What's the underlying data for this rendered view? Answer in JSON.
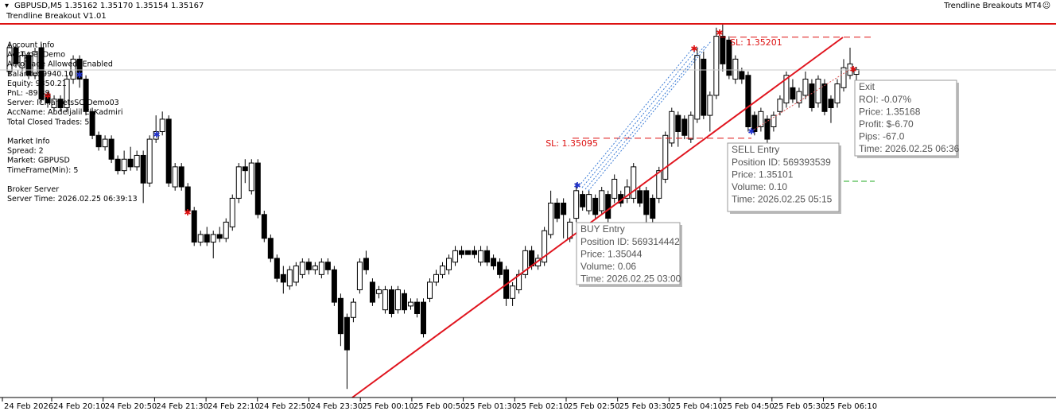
{
  "chart_data": {
    "type": "candlestick",
    "title": "GBPUSD,M5  1.35162 1.35170 1.35154 1.35167",
    "subtitle": "Trendline Breakout V1.01",
    "indicator_name": "Trendline Breakouts MT4",
    "ylim": [
      1.34823,
      1.35215
    ],
    "x_labels": [
      "24 Feb 2026",
      "24 Feb 20:10",
      "24 Feb 20:50",
      "24 Feb 21:30",
      "24 Feb 22:10",
      "24 Feb 22:50",
      "24 Feb 23:30",
      "25 Feb 00:10",
      "25 Feb 00:50",
      "25 Feb 01:30",
      "25 Feb 02:10",
      "25 Feb 02:50",
      "25 Feb 03:30",
      "25 Feb 04:10",
      "25 Feb 04:50",
      "25 Feb 05:30",
      "25 Feb 06:10"
    ],
    "candles": [
      [
        1.35165,
        1.35194,
        1.35161,
        1.3519
      ],
      [
        1.3519,
        1.35194,
        1.35169,
        1.35173
      ],
      [
        1.35169,
        1.35186,
        1.35165,
        1.35182
      ],
      [
        1.35182,
        1.35186,
        1.35157,
        1.35161
      ],
      [
        1.35161,
        1.3519,
        1.35157,
        1.35186
      ],
      [
        1.3519,
        1.35194,
        1.35132,
        1.35136
      ],
      [
        1.3514,
        1.35144,
        1.35127,
        1.35132
      ],
      [
        1.35127,
        1.3514,
        1.35123,
        1.35136
      ],
      [
        1.35136,
        1.3514,
        1.35123,
        1.35127
      ],
      [
        1.35127,
        1.35161,
        1.35123,
        1.35157
      ],
      [
        1.35157,
        1.35182,
        1.35152,
        1.35178
      ],
      [
        1.35178,
        1.35182,
        1.35148,
        1.35157
      ],
      [
        1.35157,
        1.35161,
        1.35119,
        1.35123
      ],
      [
        1.35123,
        1.35127,
        1.35094,
        1.35098
      ],
      [
        1.35098,
        1.35102,
        1.35082,
        1.35086
      ],
      [
        1.35086,
        1.35098,
        1.35082,
        1.35094
      ],
      [
        1.35094,
        1.35098,
        1.35069,
        1.35073
      ],
      [
        1.35073,
        1.35077,
        1.35057,
        1.35061
      ],
      [
        1.35061,
        1.35082,
        1.35057,
        1.35073
      ],
      [
        1.35073,
        1.35086,
        1.35061,
        1.35065
      ],
      [
        1.35065,
        1.35082,
        1.35061,
        1.35077
      ],
      [
        1.35077,
        1.35082,
        1.35027,
        1.35048
      ],
      [
        1.35048,
        1.35098,
        1.35044,
        1.35094
      ],
      [
        1.35094,
        1.35119,
        1.3509,
        1.35102
      ],
      [
        1.35102,
        1.35123,
        1.35098,
        1.35115
      ],
      [
        1.35115,
        1.35119,
        1.35044,
        1.35048
      ],
      [
        1.35044,
        1.35069,
        1.3504,
        1.35065
      ],
      [
        1.35065,
        1.35069,
        1.3504,
        1.35044
      ],
      [
        1.35044,
        1.35048,
        1.35015,
        1.35019
      ],
      [
        1.35019,
        1.35023,
        1.34982,
        1.34986
      ],
      [
        1.34986,
        1.34998,
        1.34982,
        1.34994
      ],
      [
        1.34994,
        1.35002,
        1.34982,
        1.34986
      ],
      [
        1.34986,
        1.34998,
        1.34969,
        1.34994
      ],
      [
        1.34994,
        1.35002,
        1.34986,
        1.3499
      ],
      [
        1.3499,
        1.35011,
        1.34986,
        1.35007
      ],
      [
        1.35002,
        1.35036,
        1.34998,
        1.35032
      ],
      [
        1.35032,
        1.35069,
        1.35027,
        1.35065
      ],
      [
        1.35065,
        1.35073,
        1.35048,
        1.35061
      ],
      [
        1.3504,
        1.35073,
        1.35036,
        1.35069
      ],
      [
        1.35069,
        1.35073,
        1.35011,
        1.35015
      ],
      [
        1.35015,
        1.35019,
        1.34986,
        1.3499
      ],
      [
        1.3499,
        1.34994,
        1.34965,
        1.34969
      ],
      [
        1.34969,
        1.34973,
        1.34944,
        1.34948
      ],
      [
        1.34952,
        1.34961,
        1.34932,
        1.34944
      ],
      [
        1.3494,
        1.34961,
        1.34936,
        1.34957
      ],
      [
        1.34944,
        1.34965,
        1.3494,
        1.34961
      ],
      [
        1.34952,
        1.34969,
        1.34948,
        1.34965
      ],
      [
        1.34965,
        1.34969,
        1.34952,
        1.34957
      ],
      [
        1.34957,
        1.34965,
        1.34952,
        1.34961
      ],
      [
        1.34952,
        1.34969,
        1.34948,
        1.34965
      ],
      [
        1.34965,
        1.34969,
        1.34952,
        1.34957
      ],
      [
        1.34957,
        1.34961,
        1.34919,
        1.34923
      ],
      [
        1.34927,
        1.34932,
        1.34877,
        1.3489
      ],
      [
        1.34907,
        1.34911,
        1.34832,
        1.34873
      ],
      [
        1.34907,
        1.34927,
        1.34902,
        1.34923
      ],
      [
        1.34936,
        1.34969,
        1.34932,
        1.34965
      ],
      [
        1.34969,
        1.34977,
        1.34952,
        1.34957
      ],
      [
        1.34944,
        1.34948,
        1.34919,
        1.34923
      ],
      [
        1.34932,
        1.3494,
        1.34927,
        1.34936
      ],
      [
        1.34915,
        1.3494,
        1.34911,
        1.34936
      ],
      [
        1.34936,
        1.3494,
        1.34907,
        1.34911
      ],
      [
        1.34915,
        1.3494,
        1.34911,
        1.34936
      ],
      [
        1.34932,
        1.34936,
        1.34911,
        1.34915
      ],
      [
        1.34919,
        1.34927,
        1.34915,
        1.34923
      ],
      [
        1.34923,
        1.34927,
        1.34907,
        1.34911
      ],
      [
        1.34923,
        1.34927,
        1.34886,
        1.3489
      ],
      [
        1.34927,
        1.34948,
        1.34923,
        1.34944
      ],
      [
        1.34944,
        1.34957,
        1.3494,
        1.34952
      ],
      [
        1.34952,
        1.34965,
        1.34948,
        1.34961
      ],
      [
        1.34957,
        1.34973,
        1.34952,
        1.34969
      ],
      [
        1.34965,
        1.34982,
        1.34961,
        1.34977
      ],
      [
        1.34977,
        1.34982,
        1.34969,
        1.34973
      ],
      [
        1.34977,
        1.34977,
        1.34973,
        1.34973
      ],
      [
        1.34977,
        1.34982,
        1.34969,
        1.34973
      ],
      [
        1.34965,
        1.34982,
        1.34961,
        1.34977
      ],
      [
        1.34977,
        1.34982,
        1.34961,
        1.34965
      ],
      [
        1.34969,
        1.34973,
        1.34957,
        1.34961
      ],
      [
        1.34965,
        1.34969,
        1.34948,
        1.34952
      ],
      [
        1.34957,
        1.34961,
        1.34919,
        1.34927
      ],
      [
        1.34927,
        1.34944,
        1.34919,
        1.3494
      ],
      [
        1.34936,
        1.34957,
        1.34932,
        1.34952
      ],
      [
        1.34952,
        1.34982,
        1.34948,
        1.34977
      ],
      [
        1.34977,
        1.34982,
        1.34957,
        1.34961
      ],
      [
        1.34961,
        1.34973,
        1.34957,
        1.34969
      ],
      [
        1.34965,
        1.35002,
        1.34961,
        1.34998
      ],
      [
        1.34994,
        1.3504,
        1.3499,
        1.35027
      ],
      [
        1.35027,
        1.35032,
        1.35007,
        1.35011
      ],
      [
        1.35027,
        1.35032,
        1.3499,
        1.35015
      ],
      [
        1.3499,
        1.35011,
        1.34986,
        1.35007
      ],
      [
        1.35011,
        1.35048,
        1.35007,
        1.3504
      ],
      [
        1.35036,
        1.3504,
        1.35019,
        1.35023
      ],
      [
        1.35019,
        1.3504,
        1.35015,
        1.35036
      ],
      [
        1.35032,
        1.35036,
        1.35011,
        1.35015
      ],
      [
        1.35019,
        1.35044,
        1.35015,
        1.3504
      ],
      [
        1.35036,
        1.3504,
        1.35007,
        1.35011
      ],
      [
        1.35032,
        1.35057,
        1.35027,
        1.35052
      ],
      [
        1.35036,
        1.3504,
        1.35023,
        1.35027
      ],
      [
        1.35032,
        1.35052,
        1.35027,
        1.35044
      ],
      [
        1.35032,
        1.35069,
        1.35027,
        1.35065
      ],
      [
        1.3504,
        1.35044,
        1.35023,
        1.35027
      ],
      [
        1.3504,
        1.35044,
        1.35007,
        1.35015
      ],
      [
        1.35032,
        1.35036,
        1.35007,
        1.35011
      ],
      [
        1.35032,
        1.35065,
        1.35027,
        1.35061
      ],
      [
        1.35052,
        1.35102,
        1.35048,
        1.35098
      ],
      [
        1.3509,
        1.35127,
        1.35086,
        1.35123
      ],
      [
        1.35119,
        1.35123,
        1.35086,
        1.35102
      ],
      [
        1.35115,
        1.35119,
        1.35094,
        1.35098
      ],
      [
        1.35094,
        1.35123,
        1.3509,
        1.35119
      ],
      [
        1.35115,
        1.3519,
        1.35111,
        1.35182
      ],
      [
        1.35178,
        1.35186,
        1.35115,
        1.35119
      ],
      [
        1.35119,
        1.35144,
        1.35102,
        1.3514
      ],
      [
        1.3514,
        1.35211,
        1.35136,
        1.35202
      ],
      [
        1.35202,
        1.35215,
        1.35165,
        1.35173
      ],
      [
        1.35198,
        1.35202,
        1.35157,
        1.35161
      ],
      [
        1.35157,
        1.35182,
        1.35152,
        1.35178
      ],
      [
        1.35165,
        1.35169,
        1.35152,
        1.35157
      ],
      [
        1.35161,
        1.35165,
        1.35102,
        1.35107
      ],
      [
        1.35119,
        1.35123,
        1.35098,
        1.35102
      ],
      [
        1.35107,
        1.35127,
        1.35102,
        1.35123
      ],
      [
        1.35115,
        1.35119,
        1.3509,
        1.35094
      ],
      [
        1.35107,
        1.35123,
        1.35102,
        1.35119
      ],
      [
        1.35123,
        1.3514,
        1.35119,
        1.35136
      ],
      [
        1.35132,
        1.35165,
        1.35127,
        1.35161
      ],
      [
        1.35148,
        1.35157,
        1.35132,
        1.35136
      ],
      [
        1.35132,
        1.35148,
        1.35127,
        1.35144
      ],
      [
        1.3514,
        1.35165,
        1.35136,
        1.35157
      ],
      [
        1.35152,
        1.35157,
        1.35123,
        1.35127
      ],
      [
        1.35132,
        1.35161,
        1.35127,
        1.35157
      ],
      [
        1.35152,
        1.35157,
        1.35119,
        1.35123
      ],
      [
        1.35136,
        1.3514,
        1.35111,
        1.35127
      ],
      [
        1.35132,
        1.35157,
        1.35127,
        1.35152
      ],
      [
        1.35148,
        1.35178,
        1.35144,
        1.35169
      ],
      [
        1.35161,
        1.3519,
        1.35157,
        1.35173
      ],
      [
        1.35162,
        1.3517,
        1.35154,
        1.35167
      ]
    ],
    "sl_levels": [
      {
        "value": 1.35201,
        "label": "SL: 1.35201"
      },
      {
        "value": 1.35095,
        "label": "SL: 1.35095"
      }
    ],
    "sl_color": "#d11"
  },
  "info_panel": {
    "account": [
      "Account Info",
      "AccType: Demo",
      "AutoTrade Allowed: Enabled",
      "Balance: 9940.10",
      "Equity: 9850.21",
      "PnL: -89.89",
      "Server: ICMarketsSC-Demo03",
      "AccName: Abdeljalil  El Kadmiri",
      "Total Closed Trades: 5"
    ],
    "market": [
      "Market Info",
      "Spread: 2",
      "Market: GBPUSD",
      "TimeFrame(Min): 5"
    ],
    "broker": [
      "Broker Server",
      "Server Time: 2026.02.25 06:39:13"
    ]
  },
  "tooltips": {
    "buy": [
      "BUY Entry",
      "Position ID: 569314442",
      "Price: 1.35044",
      "Volume: 0.06",
      "Time: 2026.02.25 03:00"
    ],
    "sell": [
      "SELL Entry",
      "Position ID: 569393539",
      "Price: 1.35101",
      "Volume: 0.10",
      "Time: 2026.02.25 05:15"
    ],
    "exit": [
      "Exit",
      "ROI: -0.07%",
      "Price: 1.35168",
      "Profit: $-6.70",
      "Pips: -67.0",
      "Time: 2026.02.25 06:36"
    ]
  }
}
